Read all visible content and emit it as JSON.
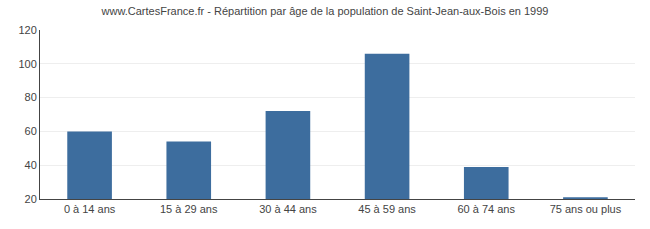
{
  "chart_data": {
    "type": "bar",
    "title": "www.CartesFrance.fr - Répartition par âge de la population de Saint-Jean-aux-Bois en 1999",
    "categories": [
      "0 à 14 ans",
      "15 à 29 ans",
      "30 à 44 ans",
      "45 à 59 ans",
      "60 à 74 ans",
      "75 ans ou plus"
    ],
    "values": [
      60,
      54,
      72,
      106,
      39,
      21
    ],
    "color": "#3d6d9e",
    "ylim": [
      20,
      120
    ],
    "yticks": [
      20,
      40,
      60,
      80,
      100,
      120
    ],
    "grid": true
  }
}
